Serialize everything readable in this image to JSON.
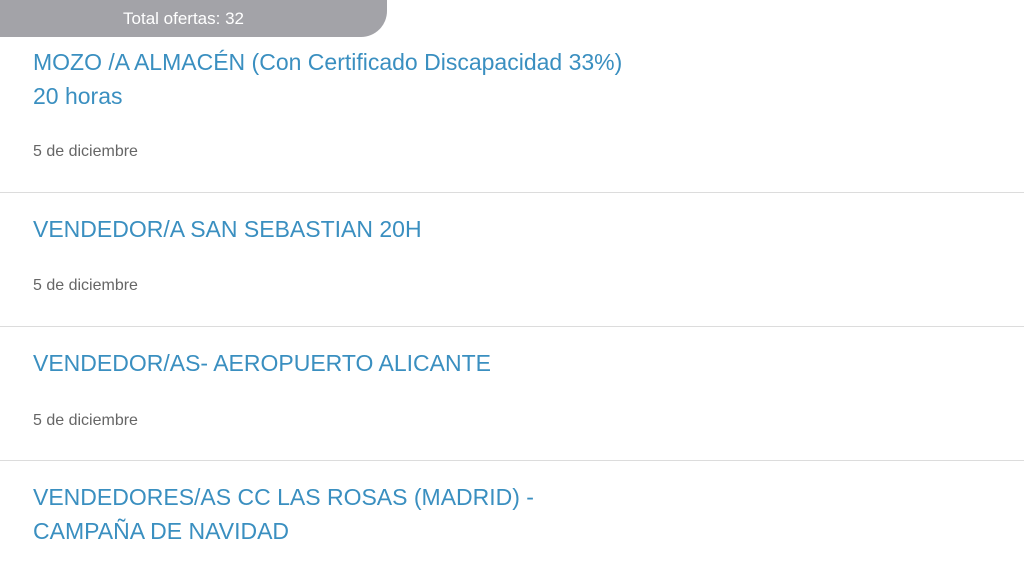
{
  "header": {
    "total_label": "Total ofertas: 32"
  },
  "offers": [
    {
      "title": "MOZO /A ALMACÉN (Con Certificado Discapacidad 33%)",
      "subtitle": "20 horas",
      "date": "5 de diciembre"
    },
    {
      "title": "VENDEDOR/A SAN SEBASTIAN 20H",
      "date": "5 de diciembre"
    },
    {
      "title": "VENDEDOR/AS- AEROPUERTO ALICANTE",
      "date": "5 de diciembre"
    },
    {
      "title": "VENDEDORES/AS CC LAS ROSAS (MADRID) -",
      "subtitle": "CAMPAÑA DE NAVIDAD"
    }
  ],
  "colors": {
    "title": "#3a8fc0",
    "banner": "#a3a3a8"
  }
}
